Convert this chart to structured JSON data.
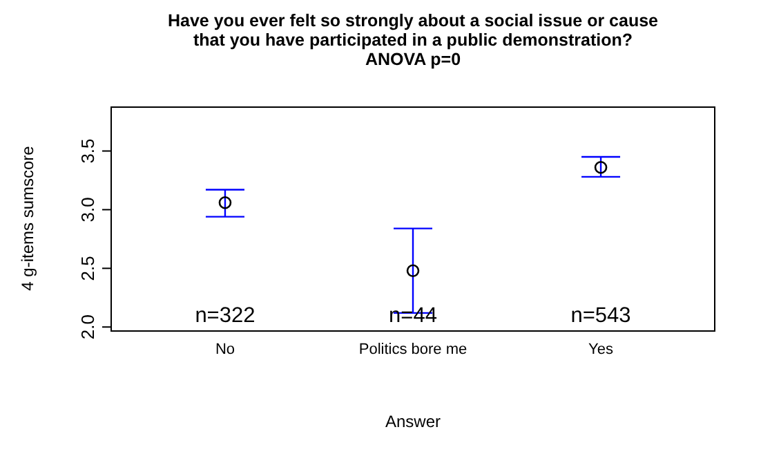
{
  "chart_data": {
    "type": "scatter",
    "title": "Have you ever felt so strongly about a social issue or cause that you have participated in a public demonstration?",
    "subtitle": "ANOVA p=0",
    "xlabel": "Answer",
    "ylabel": "4 g-items sumscore",
    "categories": [
      "No",
      "Politics bore me",
      "Yes"
    ],
    "series": [
      {
        "color": "#000000",
        "values": [
          3.06,
          2.48,
          3.36
        ],
        "errors": [
          [
            2.94,
            3.17
          ],
          [
            2.12,
            2.84
          ],
          [
            3.28,
            3.45
          ]
        ]
      }
    ],
    "marker": "circle",
    "ylim": [
      1.96,
      3.88
    ],
    "yticks": [
      {
        "value": 2,
        "label": "2.0"
      },
      {
        "value": 2.5,
        "label": "2.5"
      },
      {
        "value": 3,
        "label": "3.0"
      },
      {
        "value": 3.5,
        "label": "3.5"
      }
    ],
    "grid": false,
    "legend": false,
    "annotations": [
      "n=322",
      "n=44",
      "n=543"
    ]
  }
}
